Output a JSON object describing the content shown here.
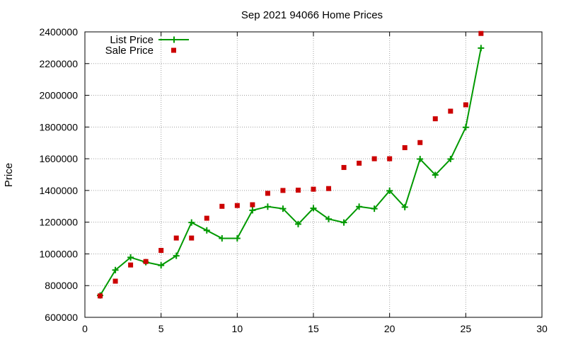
{
  "chart_data": {
    "type": "line",
    "title": "Sep 2021 94066 Home Prices",
    "xlabel": "",
    "ylabel": "Price",
    "xlim": [
      0,
      30
    ],
    "ylim": [
      600000,
      2400000
    ],
    "xticks": [
      0,
      5,
      10,
      15,
      20,
      25,
      30
    ],
    "yticks": [
      600000,
      800000,
      1000000,
      1200000,
      1400000,
      1600000,
      1800000,
      2000000,
      2200000,
      2400000
    ],
    "grid": true,
    "legend_position": "top-left",
    "series": [
      {
        "name": "List Price",
        "style": "line-with-plus-markers",
        "color": "#009900",
        "x": [
          1,
          2,
          3,
          4,
          5,
          6,
          7,
          8,
          9,
          10,
          11,
          12,
          13,
          14,
          15,
          16,
          17,
          18,
          19,
          20,
          21,
          22,
          23,
          24,
          25,
          26
        ],
        "values": [
          738000,
          898000,
          978000,
          948000,
          928000,
          988000,
          1198000,
          1148000,
          1098000,
          1098000,
          1275000,
          1298000,
          1285000,
          1188000,
          1288000,
          1220000,
          1198000,
          1298000,
          1285000,
          1398000,
          1295000,
          1598000,
          1498000,
          1598000,
          1798000,
          2298000
        ]
      },
      {
        "name": "Sale Price",
        "style": "square-markers",
        "color": "#cc0000",
        "x": [
          1,
          2,
          3,
          4,
          5,
          6,
          7,
          8,
          9,
          10,
          11,
          12,
          13,
          14,
          15,
          16,
          17,
          18,
          19,
          20,
          21,
          22,
          23,
          24,
          25,
          26
        ],
        "values": [
          735000,
          828000,
          930000,
          952000,
          1022000,
          1100000,
          1100000,
          1225000,
          1300000,
          1305000,
          1310000,
          1382000,
          1400000,
          1402000,
          1408000,
          1412000,
          1545000,
          1572000,
          1600000,
          1600000,
          1670000,
          1702000,
          1852000,
          1900000,
          1940000,
          2390000
        ]
      }
    ]
  }
}
